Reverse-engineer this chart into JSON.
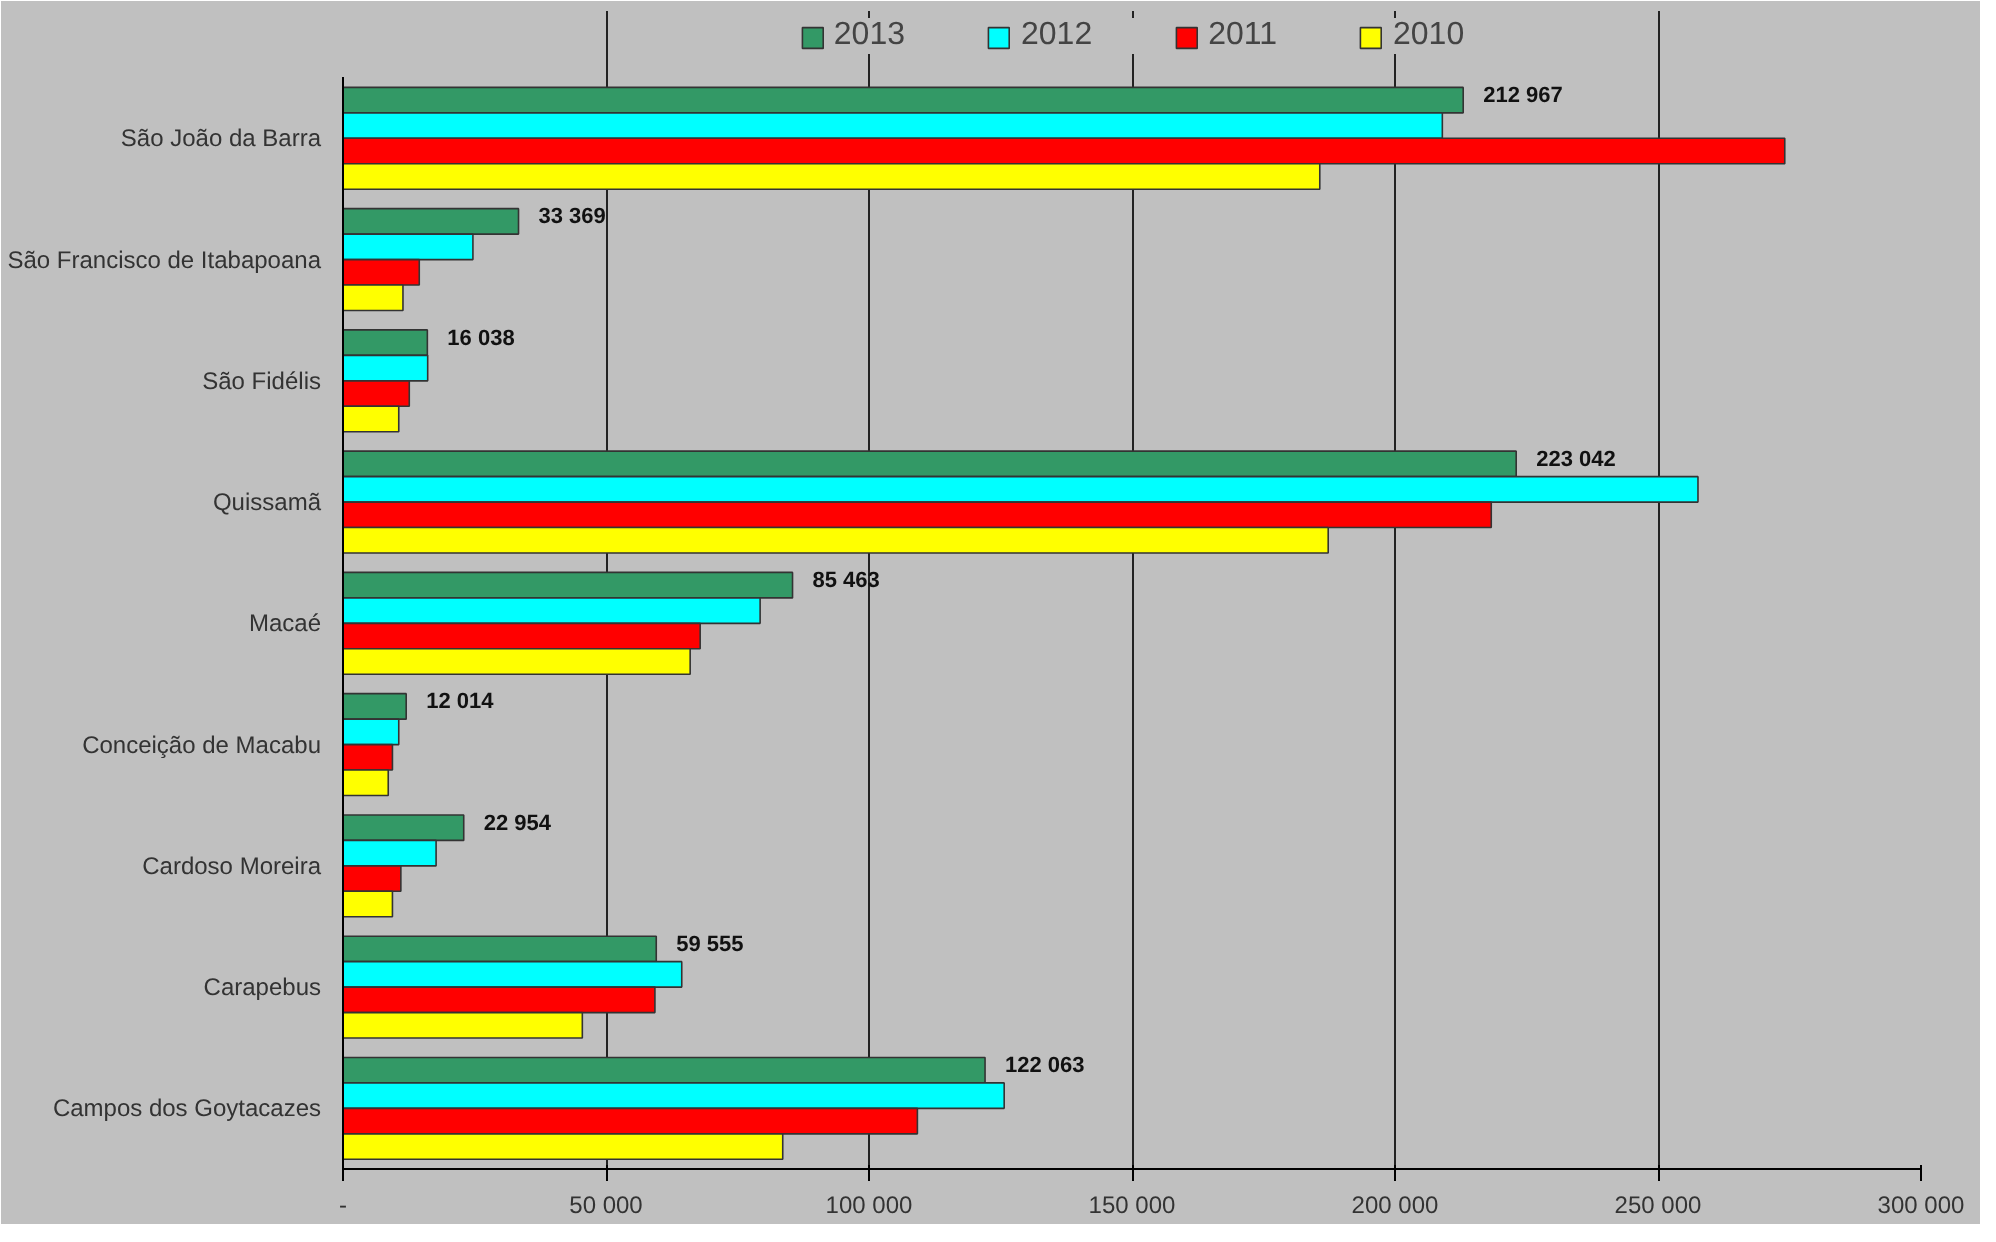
{
  "chart_data": {
    "type": "bar",
    "orientation": "horizontal",
    "categories": [
      "São João da Barra",
      "São Francisco de Itabapoana",
      "São Fidélis",
      "Quissamã",
      "Macaé",
      "Conceição de Macabu",
      "Cardoso Moreira",
      "Carapebus",
      "Campos dos Goytacazes"
    ],
    "series": [
      {
        "name": "2013",
        "color": "#339966",
        "values": [
          212967,
          33369,
          16038,
          223042,
          85463,
          12014,
          22954,
          59555,
          122063
        ],
        "value_labels": [
          "212 967",
          "33 369",
          "16 038",
          "223 042",
          "85 463",
          "12 014",
          "22 954",
          "59 555",
          "122 063"
        ]
      },
      {
        "name": "2012",
        "color": "#00ffff",
        "values": [
          209000,
          24700,
          16100,
          257600,
          79300,
          10600,
          17700,
          64400,
          125700
        ]
      },
      {
        "name": "2011",
        "color": "#ff0000",
        "values": [
          274100,
          14500,
          12600,
          218300,
          67900,
          9400,
          11000,
          59300,
          109200
        ]
      },
      {
        "name": "2010",
        "color": "#ffff00",
        "values": [
          185700,
          11400,
          10600,
          187300,
          66000,
          8600,
          9400,
          45500,
          83600
        ]
      }
    ],
    "xlim": [
      0,
      300000
    ],
    "xticks": [
      {
        "value": 0,
        "label": "-"
      },
      {
        "value": 50000,
        "label": "50 000"
      },
      {
        "value": 100000,
        "label": "100 000"
      },
      {
        "value": 150000,
        "label": "150 000"
      },
      {
        "value": 200000,
        "label": "200 000"
      },
      {
        "value": 250000,
        "label": "250 000"
      },
      {
        "value": 300000,
        "label": "300 000"
      }
    ],
    "grid": "x",
    "legend": "top"
  }
}
